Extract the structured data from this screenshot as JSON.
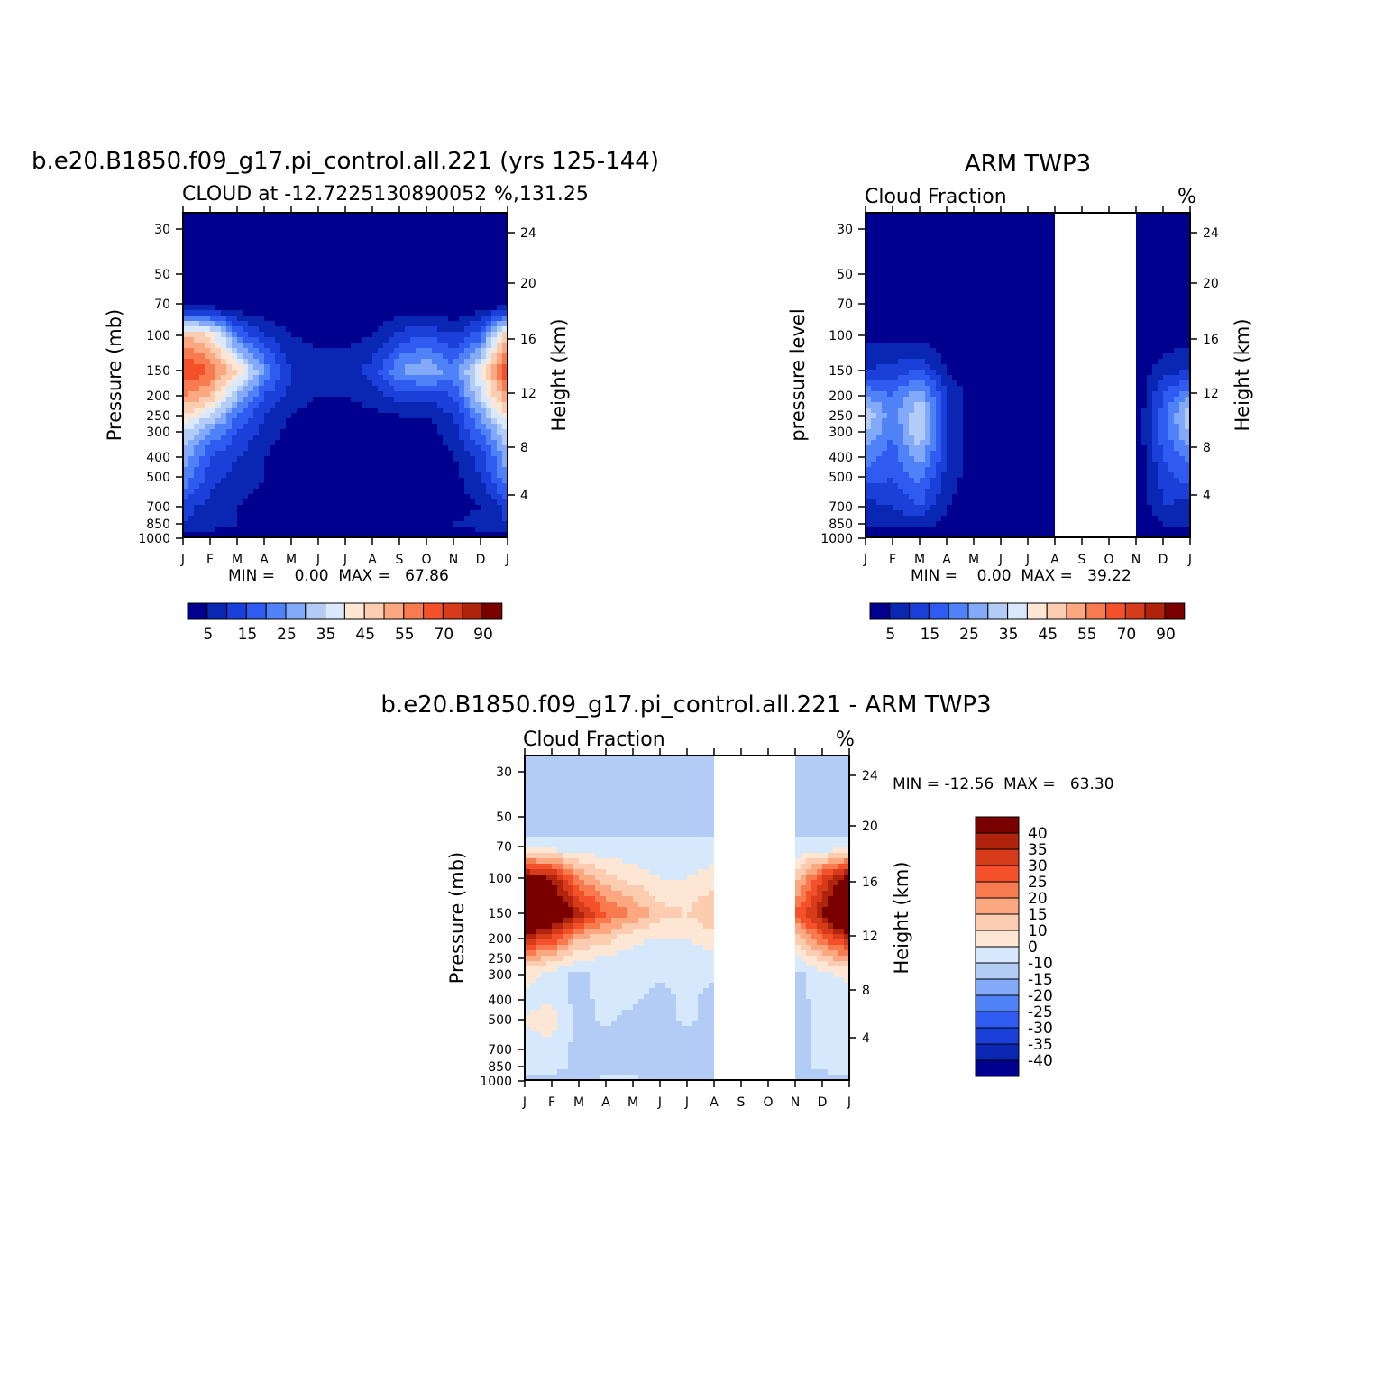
{
  "colors": {
    "abs_scale": [
      "#00008f",
      "#0a27b3",
      "#1a40d9",
      "#2f5bf0",
      "#4f82f7",
      "#82aaf8",
      "#b3ccf5",
      "#d9e8fb",
      "#fde6d4",
      "#fcccb0",
      "#fba780",
      "#f87a4f",
      "#f4502a",
      "#d63c19",
      "#b0230d",
      "#7a0000"
    ],
    "diff_scale": [
      "#00008f",
      "#0a27b3",
      "#1a40d9",
      "#2f5bf0",
      "#4f82f7",
      "#82aaf8",
      "#b3ccf5",
      "#d6e8fb",
      "#fde6d4",
      "#fcccb0",
      "#fba780",
      "#f87a4f",
      "#f4502a",
      "#d63c19",
      "#b0230d",
      "#7a0000"
    ],
    "missing": "#ffffff"
  },
  "chart_data": [
    {
      "type": "heatmap",
      "title": "b.e20.B1850.f09_g17.pi_control.all.221 (yrs 125-144)",
      "subtitle_left": "CLOUD at -12.7225130890052",
      "subtitle_right": "%,131.25",
      "ylabel": "Pressure (mb)",
      "ylabel_right": "Height (km)",
      "x_tick_labels": [
        "J",
        "F",
        "M",
        "A",
        "M",
        "J",
        "J",
        "A",
        "S",
        "O",
        "N",
        "D",
        "J"
      ],
      "y_tick_labels": [
        "30",
        "50",
        "70",
        "100",
        "150",
        "200",
        "250",
        "300",
        "400",
        "500",
        "700",
        "850",
        "1000"
      ],
      "y_right_tick_labels": [
        "24",
        "20",
        "16",
        "12",
        "8",
        "4"
      ],
      "minmax": "MIN =    0.00  MAX =   67.86",
      "min": 0.0,
      "max": 67.86,
      "colorbar_labels": [
        "5",
        "15",
        "25",
        "35",
        "45",
        "55",
        "70",
        "90"
      ],
      "levels": [
        30,
        50,
        70,
        100,
        150,
        200,
        250,
        300,
        400,
        500,
        700,
        850,
        1000
      ],
      "months": [
        "Jan",
        "Feb",
        "Mar",
        "Apr",
        "May",
        "Jun",
        "Jul",
        "Aug",
        "Sep",
        "Oct",
        "Nov",
        "Dec",
        "Jan"
      ],
      "values": [
        [
          0,
          0,
          0,
          0,
          0,
          0,
          0,
          0,
          0,
          0,
          0,
          0,
          0
        ],
        [
          0,
          0,
          0,
          0,
          0,
          0,
          0,
          0,
          0,
          0,
          0,
          0,
          0
        ],
        [
          1,
          1,
          0,
          0,
          0,
          0,
          0,
          0,
          0,
          0,
          0,
          1,
          1
        ],
        [
          50,
          45,
          20,
          10,
          5,
          3,
          3,
          5,
          12,
          15,
          10,
          18,
          50
        ],
        [
          66,
          60,
          45,
          25,
          10,
          8,
          8,
          12,
          25,
          30,
          22,
          40,
          66
        ],
        [
          55,
          50,
          30,
          15,
          8,
          5,
          5,
          8,
          12,
          12,
          15,
          35,
          55
        ],
        [
          45,
          35,
          20,
          10,
          5,
          2,
          2,
          3,
          5,
          5,
          10,
          25,
          45
        ],
        [
          35,
          25,
          15,
          8,
          3,
          1,
          1,
          1,
          1,
          2,
          8,
          20,
          35
        ],
        [
          28,
          15,
          10,
          5,
          2,
          1,
          1,
          1,
          1,
          1,
          5,
          12,
          28
        ],
        [
          25,
          12,
          8,
          5,
          2,
          1,
          1,
          1,
          1,
          1,
          3,
          10,
          25
        ],
        [
          12,
          8,
          5,
          3,
          2,
          1,
          1,
          1,
          1,
          1,
          2,
          5,
          12
        ],
        [
          10,
          8,
          5,
          3,
          3,
          3,
          3,
          2,
          2,
          3,
          5,
          8,
          10
        ],
        [
          1,
          1,
          1,
          1,
          1,
          1,
          1,
          1,
          1,
          1,
          1,
          1,
          1
        ]
      ]
    },
    {
      "type": "heatmap",
      "title": "ARM TWP3",
      "subtitle_left": "Cloud Fraction",
      "subtitle_right": "%",
      "ylabel": "pressure level",
      "ylabel_right": "Height (km)",
      "x_tick_labels": [
        "J",
        "F",
        "M",
        "A",
        "M",
        "J",
        "J",
        "A",
        "S",
        "O",
        "N",
        "D",
        "J"
      ],
      "y_tick_labels": [
        "30",
        "50",
        "70",
        "100",
        "150",
        "200",
        "250",
        "300",
        "400",
        "500",
        "700",
        "850",
        "1000"
      ],
      "y_right_tick_labels": [
        "24",
        "20",
        "16",
        "12",
        "8",
        "4"
      ],
      "minmax": "MIN =    0.00  MAX =   39.22",
      "min": 0.0,
      "max": 39.22,
      "colorbar_labels": [
        "5",
        "15",
        "25",
        "35",
        "45",
        "55",
        "70",
        "90"
      ],
      "levels": [
        30,
        50,
        70,
        100,
        150,
        200,
        250,
        300,
        400,
        500,
        700,
        850,
        1000
      ],
      "months": [
        "Jan",
        "Feb",
        "Mar",
        "Apr",
        "May",
        "Jun",
        "Jul",
        "Aug",
        "Sep",
        "Oct",
        "Nov",
        "Dec",
        "Jan"
      ],
      "missing_months": [
        "Sep",
        "Oct"
      ],
      "values": [
        [
          0,
          0,
          0,
          0,
          0,
          0,
          0,
          0,
          null,
          null,
          0,
          0,
          0
        ],
        [
          0,
          0,
          0,
          0,
          0,
          0,
          0,
          0,
          null,
          null,
          0,
          0,
          0
        ],
        [
          0,
          0,
          0,
          0,
          0,
          0,
          0,
          0,
          null,
          null,
          0,
          0,
          0
        ],
        [
          3,
          3,
          3,
          1,
          0,
          0,
          0,
          0,
          null,
          null,
          0,
          1,
          3
        ],
        [
          10,
          12,
          15,
          5,
          1,
          0,
          0,
          0,
          null,
          null,
          0,
          8,
          10
        ],
        [
          25,
          20,
          30,
          10,
          2,
          0,
          0,
          0,
          null,
          null,
          0,
          15,
          25
        ],
        [
          35,
          22,
          35,
          10,
          2,
          0,
          0,
          0,
          null,
          null,
          0,
          18,
          35
        ],
        [
          30,
          20,
          35,
          10,
          2,
          0,
          0,
          0,
          null,
          null,
          0,
          18,
          30
        ],
        [
          22,
          18,
          28,
          10,
          2,
          0,
          0,
          0,
          null,
          null,
          0,
          15,
          22
        ],
        [
          18,
          15,
          22,
          8,
          2,
          0,
          0,
          0,
          null,
          null,
          0,
          12,
          18
        ],
        [
          8,
          10,
          15,
          5,
          2,
          1,
          0,
          0,
          null,
          null,
          0,
          10,
          8
        ],
        [
          5,
          5,
          8,
          3,
          2,
          2,
          1,
          0,
          null,
          null,
          0,
          5,
          5
        ],
        [
          0,
          0,
          0,
          0,
          0,
          0,
          0,
          0,
          null,
          null,
          0,
          0,
          0
        ]
      ]
    },
    {
      "type": "heatmap",
      "title": "b.e20.B1850.f09_g17.pi_control.all.221 - ARM TWP3",
      "subtitle_left": "Cloud Fraction",
      "subtitle_right": "%",
      "ylabel": "Pressure (mb)",
      "ylabel_right": "Height (km)",
      "x_tick_labels": [
        "J",
        "F",
        "M",
        "A",
        "M",
        "J",
        "J",
        "A",
        "S",
        "O",
        "N",
        "D",
        "J"
      ],
      "y_tick_labels": [
        "30",
        "50",
        "70",
        "100",
        "150",
        "200",
        "250",
        "300",
        "400",
        "500",
        "700",
        "850",
        "1000"
      ],
      "y_right_tick_labels": [
        "24",
        "20",
        "16",
        "12",
        "8",
        "4"
      ],
      "minmax": "MIN = -12.56  MAX =   63.30",
      "min": -12.56,
      "max": 63.3,
      "colorbar_labels": [
        "40",
        "35",
        "30",
        "25",
        "20",
        "15",
        "10",
        "0",
        "-10",
        "-15",
        "-20",
        "-25",
        "-30",
        "-35",
        "-40"
      ],
      "levels": [
        30,
        50,
        70,
        100,
        150,
        200,
        250,
        300,
        400,
        500,
        700,
        850,
        1000
      ],
      "months": [
        "Jan",
        "Feb",
        "Mar",
        "Apr",
        "May",
        "Jun",
        "Jul",
        "Aug",
        "Sep",
        "Oct",
        "Nov",
        "Dec",
        "Jan"
      ],
      "missing_months": [
        "Sep",
        "Oct"
      ],
      "values": [
        [
          -2,
          -2,
          -2,
          -2,
          -2,
          -2,
          -2,
          -2,
          null,
          null,
          -2,
          -2,
          -2
        ],
        [
          -2,
          -2,
          -2,
          -2,
          -2,
          -2,
          -2,
          -2,
          null,
          null,
          -2,
          -2,
          -2
        ],
        [
          1,
          1,
          1,
          1,
          1,
          1,
          1,
          1,
          null,
          null,
          1,
          1,
          1
        ],
        [
          45,
          40,
          20,
          12,
          8,
          5,
          5,
          8,
          null,
          null,
          12,
          30,
          45
        ],
        [
          60,
          50,
          38,
          25,
          20,
          12,
          10,
          15,
          null,
          null,
          25,
          40,
          60
        ],
        [
          35,
          30,
          15,
          12,
          6,
          5,
          5,
          8,
          null,
          null,
          10,
          25,
          35
        ],
        [
          18,
          12,
          6,
          4,
          3,
          2,
          2,
          3,
          null,
          null,
          3,
          12,
          18
        ],
        [
          6,
          4,
          -2,
          2,
          2,
          1,
          1,
          1,
          null,
          null,
          -2,
          4,
          6
        ],
        [
          4,
          4,
          -2,
          2,
          1,
          -2,
          1,
          -2,
          null,
          null,
          -2,
          2,
          4
        ],
        [
          5,
          8,
          -2,
          1,
          -2,
          -2,
          1,
          -2,
          null,
          null,
          -2,
          1,
          5
        ],
        [
          3,
          3,
          -2,
          -2,
          -2,
          -2,
          -2,
          -2,
          null,
          null,
          -2,
          1,
          3
        ],
        [
          2,
          2,
          -2,
          -2,
          -2,
          -2,
          -2,
          -2,
          null,
          null,
          -2,
          1,
          2
        ],
        [
          -2,
          -2,
          -2,
          1,
          1,
          -2,
          -2,
          -2,
          null,
          null,
          -2,
          -2,
          -2
        ]
      ]
    }
  ]
}
